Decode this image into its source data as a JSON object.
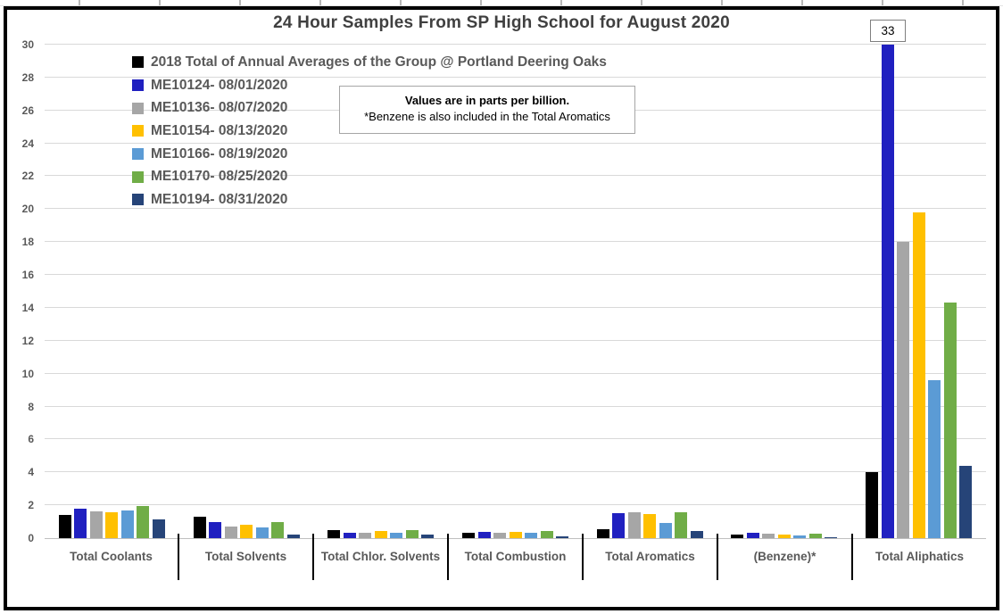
{
  "chart_data": {
    "type": "bar",
    "title": "24 Hour Samples From SP High School for August 2020",
    "note_line1": "Values are in parts per billion.",
    "note_line2": "*Benzene is also included in the Total Aromatics",
    "units": "parts per billion",
    "ylim": [
      0,
      30
    ],
    "ytick_step": 2,
    "grid": true,
    "legend_position": "top-left",
    "categories": [
      "Total Coolants",
      "Total Solvents",
      "Total Chlor. Solvents",
      "Total Combustion",
      "Total Aromatics",
      "(Benzene)*",
      "Total Aliphatics"
    ],
    "series": [
      {
        "name": "2018 Total of Annual Averages of the Group @ Portland Deering Oaks",
        "color": "#000000",
        "values": [
          1.4,
          1.3,
          0.5,
          0.35,
          0.55,
          0.2,
          4.0
        ]
      },
      {
        "name": "ME10124- 08/01/2020",
        "color": "#2020C0",
        "values": [
          1.8,
          1.0,
          0.3,
          0.4,
          1.5,
          0.3,
          33
        ]
      },
      {
        "name": "ME10136- 08/07/2020",
        "color": "#A6A6A6",
        "values": [
          1.65,
          0.7,
          0.35,
          0.35,
          1.6,
          0.25,
          18.0
        ]
      },
      {
        "name": "ME10154- 08/13/2020",
        "color": "#FFC000",
        "values": [
          1.6,
          0.8,
          0.45,
          0.4,
          1.45,
          0.2,
          19.8
        ]
      },
      {
        "name": "ME10166- 08/19/2020",
        "color": "#5B9BD5",
        "values": [
          1.7,
          0.65,
          0.35,
          0.3,
          0.95,
          0.15,
          9.6
        ]
      },
      {
        "name": "ME10170- 08/25/2020",
        "color": "#70AD47",
        "values": [
          1.95,
          1.0,
          0.5,
          0.45,
          1.55,
          0.25,
          14.3
        ]
      },
      {
        "name": "ME10194- 08/31/2020",
        "color": "#264478",
        "values": [
          1.15,
          0.2,
          0.2,
          0.1,
          0.45,
          0.05,
          4.4
        ]
      }
    ],
    "clipped_bar_label": {
      "text": "33",
      "value": 33,
      "category": "Total Aliphatics",
      "series": "ME10124- 08/01/2020"
    }
  }
}
